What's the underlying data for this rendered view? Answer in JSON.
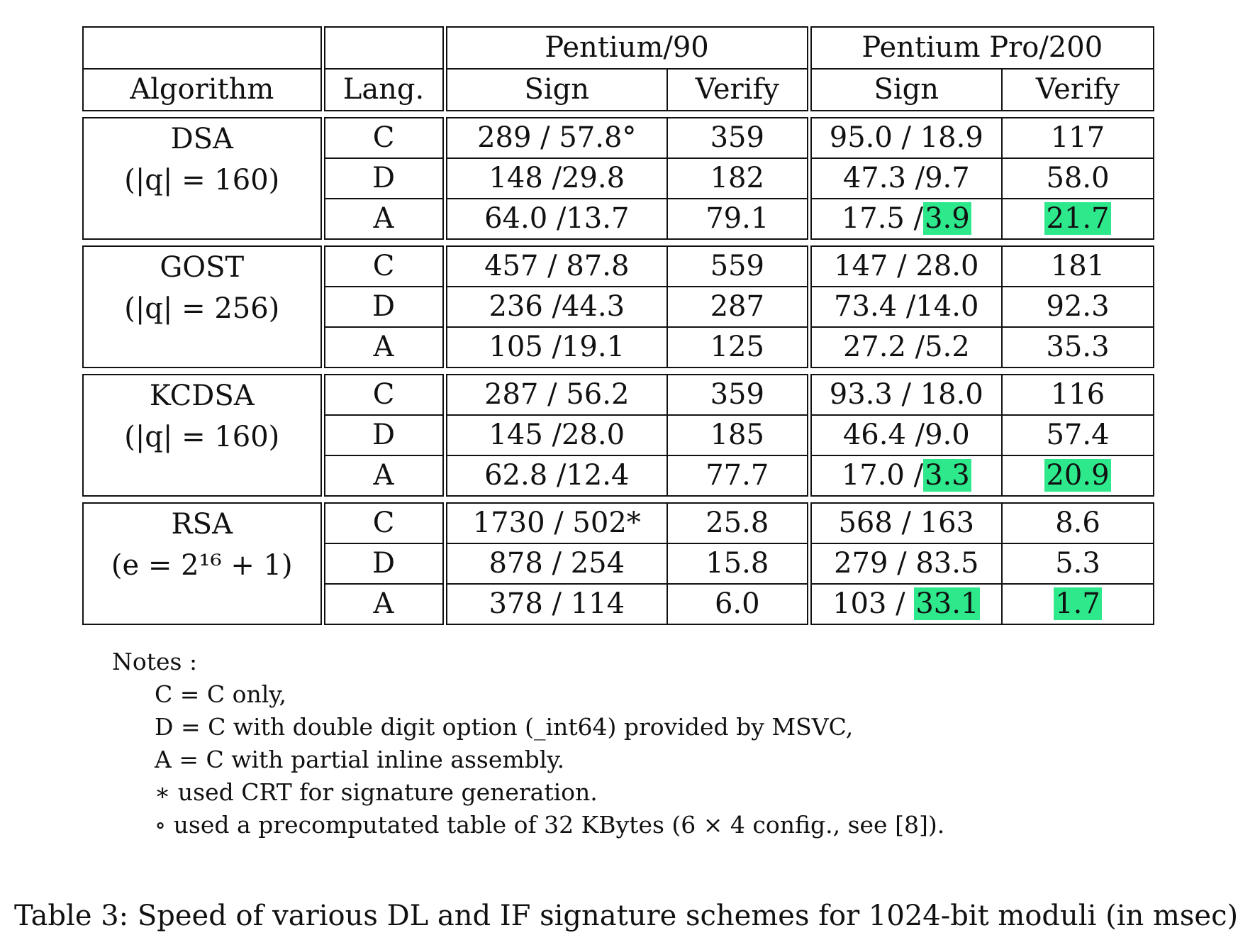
{
  "table": {
    "header_groups": [
      "Pentium/90",
      "Pentium Pro/200"
    ],
    "columns": {
      "algorithm": "Algorithm",
      "lang": "Lang.",
      "p90_sign": "Sign",
      "p90_verify": "Verify",
      "ppro_sign": "Sign",
      "ppro_verify": "Verify"
    },
    "groups": [
      {
        "name": "DSA",
        "param": "(|q| = 160)",
        "rows": [
          {
            "lang": "C",
            "p90_sign": "289 / 57.8°",
            "p90_verify": "359",
            "ppro_sign_a": "95.0 / 18.9",
            "ppro_sign_b": "",
            "ppro_verify": "117",
            "highlight": false
          },
          {
            "lang": "D",
            "p90_sign": "148 /29.8",
            "p90_verify": "182",
            "ppro_sign_a": "47.3 /9.7",
            "ppro_sign_b": "",
            "ppro_verify": "58.0",
            "highlight": false
          },
          {
            "lang": "A",
            "p90_sign": "64.0 /13.7",
            "p90_verify": "79.1",
            "ppro_sign_a": "17.5 /",
            "ppro_sign_b": "3.9",
            "ppro_verify": "21.7",
            "highlight": true
          }
        ]
      },
      {
        "name": "GOST",
        "param": "(|q| = 256)",
        "rows": [
          {
            "lang": "C",
            "p90_sign": "457 / 87.8",
            "p90_verify": "559",
            "ppro_sign_a": "147 / 28.0",
            "ppro_sign_b": "",
            "ppro_verify": "181",
            "highlight": false
          },
          {
            "lang": "D",
            "p90_sign": "236 /44.3",
            "p90_verify": "287",
            "ppro_sign_a": "73.4 /14.0",
            "ppro_sign_b": "",
            "ppro_verify": "92.3",
            "highlight": false
          },
          {
            "lang": "A",
            "p90_sign": "105 /19.1",
            "p90_verify": "125",
            "ppro_sign_a": "27.2 /5.2",
            "ppro_sign_b": "",
            "ppro_verify": "35.3",
            "highlight": false
          }
        ]
      },
      {
        "name": "KCDSA",
        "param": "(|q| = 160)",
        "rows": [
          {
            "lang": "C",
            "p90_sign": "287 / 56.2",
            "p90_verify": "359",
            "ppro_sign_a": "93.3 / 18.0",
            "ppro_sign_b": "",
            "ppro_verify": "116",
            "highlight": false
          },
          {
            "lang": "D",
            "p90_sign": "145 /28.0",
            "p90_verify": "185",
            "ppro_sign_a": "46.4 /9.0",
            "ppro_sign_b": "",
            "ppro_verify": "57.4",
            "highlight": false
          },
          {
            "lang": "A",
            "p90_sign": "62.8 /12.4",
            "p90_verify": "77.7",
            "ppro_sign_a": "17.0 /",
            "ppro_sign_b": "3.3",
            "ppro_verify": "20.9",
            "highlight": true
          }
        ]
      },
      {
        "name": "RSA",
        "param": "(e = 2¹⁶ + 1)",
        "rows": [
          {
            "lang": "C",
            "p90_sign": "1730 / 502*",
            "p90_verify": "25.8",
            "ppro_sign_a": "568 / 163",
            "ppro_sign_b": "",
            "ppro_verify": "8.6",
            "highlight": false
          },
          {
            "lang": "D",
            "p90_sign": "878 / 254",
            "p90_verify": "15.8",
            "ppro_sign_a": "279 / 83.5",
            "ppro_sign_b": "",
            "ppro_verify": "5.3",
            "highlight": false
          },
          {
            "lang": "A",
            "p90_sign": "378 / 114",
            "p90_verify": "6.0",
            "ppro_sign_a": "103 / ",
            "ppro_sign_b": "33.1",
            "ppro_verify": "1.7",
            "highlight": true
          }
        ]
      }
    ]
  },
  "notes": {
    "title": "Notes :",
    "items": [
      "C = C only,",
      "D = C with double digit option (_int64) provided by MSVC,",
      "A = C with partial inline assembly.",
      "∗ used CRT for signature generation.",
      "∘ used a precomputated table of 32 KBytes (6 × 4 config., see [8])."
    ]
  },
  "caption": "Table 3: Speed of various DL and IF signature schemes for 1024-bit moduli (in msec)",
  "colors": {
    "highlight": "#2ee88c"
  }
}
